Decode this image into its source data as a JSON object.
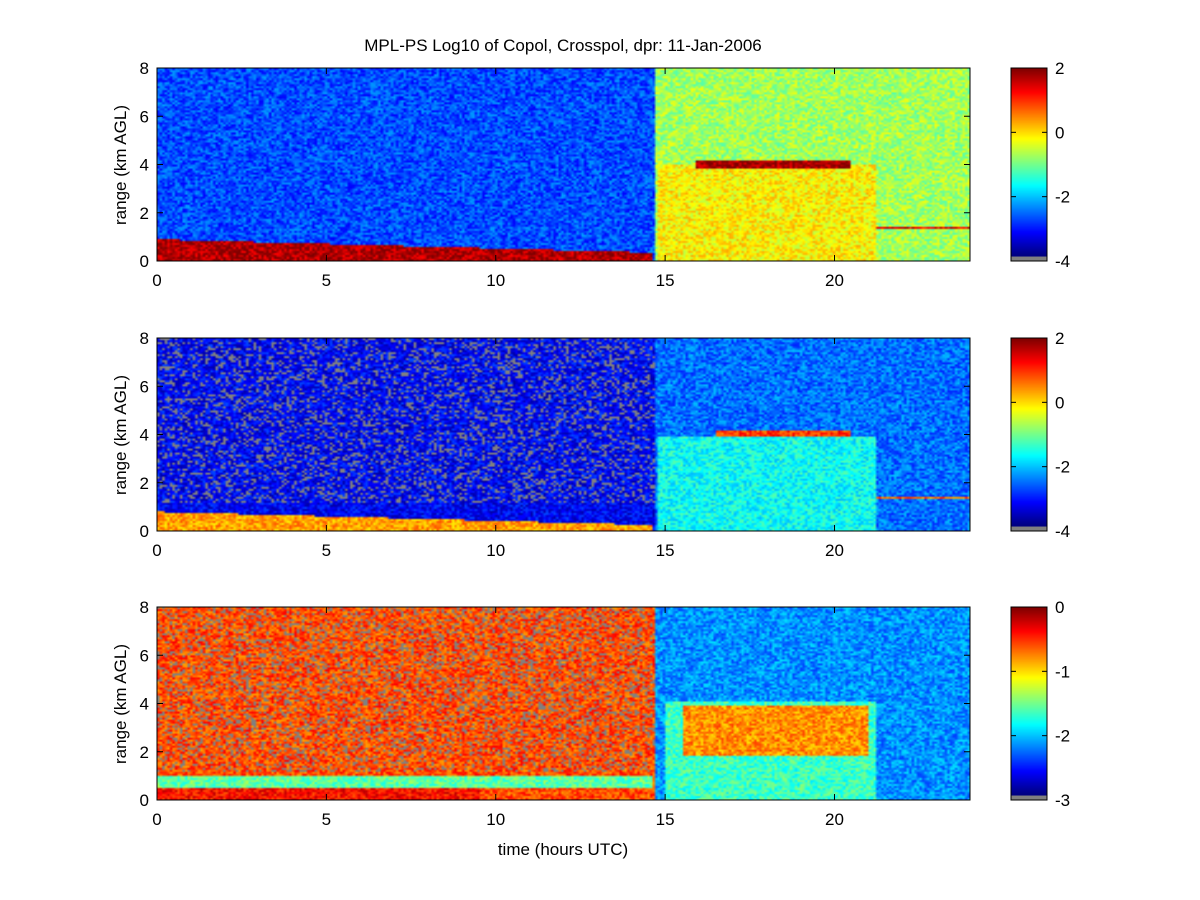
{
  "figure": {
    "title": "MPL-PS Log10 of Copol, Crosspol, dpr: 11-Jan-2006",
    "xlabel": "time (hours UTC)"
  },
  "chart_data": [
    {
      "type": "heatmap",
      "xlim": [
        0,
        24
      ],
      "ylim": [
        0,
        8
      ],
      "xticks": [
        "0",
        "5",
        "10",
        "15",
        "20"
      ],
      "yticks": [
        "0",
        "2",
        "4",
        "6",
        "8"
      ],
      "ylabel": "range (km AGL)",
      "colorbar": {
        "clim": [
          -4,
          2
        ],
        "ticks": [
          "-4",
          "-2",
          "0",
          "2"
        ]
      },
      "field": {
        "background_clear": -2.8,
        "background_after_sunrise": -0.8,
        "layers": [
          {
            "x": [
              0,
              14.6
            ],
            "y_base_start": 0.0,
            "y_top_start": 0.9,
            "y_top_end": 0.35,
            "value": 1.7
          },
          {
            "x": [
              14.8,
              21.2
            ],
            "y": [
              0,
              4.0
            ],
            "value": -0.2
          },
          {
            "x": [
              15.9,
              20.5
            ],
            "y": [
              3.85,
              4.15
            ],
            "value": 1.8
          },
          {
            "x": [
              21.2,
              24
            ],
            "y": [
              1.3,
              1.45
            ],
            "value": 1.4
          }
        ]
      }
    },
    {
      "type": "heatmap",
      "xlim": [
        0,
        24
      ],
      "ylim": [
        0,
        8
      ],
      "xticks": [
        "0",
        "5",
        "10",
        "15",
        "20"
      ],
      "yticks": [
        "0",
        "2",
        "4",
        "6",
        "8"
      ],
      "ylabel": "range (km AGL)",
      "colorbar": {
        "clim": [
          -4,
          2
        ],
        "ticks": [
          "-4",
          "-2",
          "0",
          "2"
        ]
      },
      "field": {
        "background_clear": -3.3,
        "background_after_sunrise": -2.6,
        "layers": [
          {
            "x": [
              0,
              14.6
            ],
            "y_base_start": 0.0,
            "y_top_start": 0.8,
            "y_top_end": 0.25,
            "value": 0.3
          },
          {
            "x": [
              14.8,
              21.2
            ],
            "y": [
              0,
              3.9
            ],
            "value": -1.7
          },
          {
            "x": [
              16.5,
              20.5
            ],
            "y": [
              3.9,
              4.15
            ],
            "value": 0.9
          },
          {
            "x": [
              21.2,
              24
            ],
            "y": [
              1.3,
              1.45
            ],
            "value": 0.6
          }
        ]
      }
    },
    {
      "type": "heatmap",
      "xlim": [
        0,
        24
      ],
      "ylim": [
        0,
        8
      ],
      "xticks": [
        "0",
        "5",
        "10",
        "15",
        "20"
      ],
      "yticks": [
        "0",
        "2",
        "4",
        "6",
        "8"
      ],
      "ylabel": "range (km AGL)",
      "colorbar": {
        "clim": [
          -3,
          0
        ],
        "ticks": [
          "-3",
          "-2",
          "-1",
          "0"
        ]
      },
      "field": {
        "background_clear": -0.6,
        "background_after_sunrise": -2.2,
        "layers": [
          {
            "x": [
              0,
              9.5
            ],
            "y": [
              0,
              0.5
            ],
            "value": -0.4
          },
          {
            "x": [
              0,
              14.6
            ],
            "y": [
              0.5,
              1.0
            ],
            "value": -1.6
          },
          {
            "x": [
              15,
              21.2
            ],
            "y": [
              0,
              4.1
            ],
            "value": -1.7
          },
          {
            "x": [
              15.5,
              21
            ],
            "y": [
              1.8,
              3.9
            ],
            "value": -0.8
          }
        ]
      }
    }
  ]
}
